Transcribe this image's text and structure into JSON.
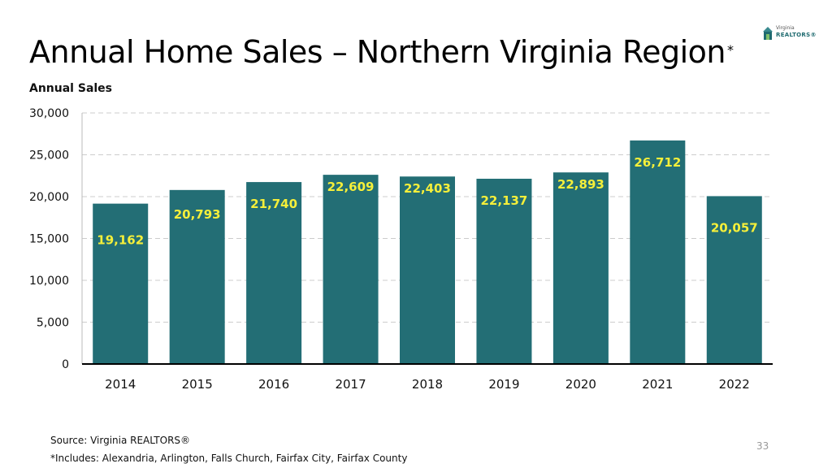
{
  "slide": {
    "title": "Annual Home Sales – Northern Virginia Region",
    "title_mark": "*",
    "source": "Source: Virginia REALTORS®",
    "note": "*Includes: Alexandria, Arlington, Falls Church, Fairfax City, Fairfax County",
    "page_number": "33",
    "logo": {
      "line1": "Virginia",
      "line2": "REALTORS®",
      "icon": "house-logo-icon"
    }
  },
  "chart_data": {
    "type": "bar",
    "title": "",
    "ylabel": "Annual Sales",
    "xlabel": "",
    "categories": [
      "2014",
      "2015",
      "2016",
      "2017",
      "2018",
      "2019",
      "2020",
      "2021",
      "2022"
    ],
    "values": [
      19162,
      20793,
      21740,
      22609,
      22403,
      22137,
      22893,
      26712,
      20057
    ],
    "data_labels": [
      "19,162",
      "20,793",
      "21,740",
      "22,609",
      "22,403",
      "22,137",
      "22,893",
      "26,712",
      "20,057"
    ],
    "ylim": [
      0,
      30000
    ],
    "yticks": [
      0,
      5000,
      10000,
      15000,
      20000,
      25000,
      30000
    ],
    "ytick_labels": [
      "0",
      "5,000",
      "10,000",
      "15,000",
      "20,000",
      "25,000",
      "30,000"
    ],
    "grid": true,
    "legend": "none",
    "colors": {
      "bar": "#236e75",
      "data_label": "#f5ef3a",
      "grid": "#cccccc",
      "axis": "#000000"
    }
  }
}
